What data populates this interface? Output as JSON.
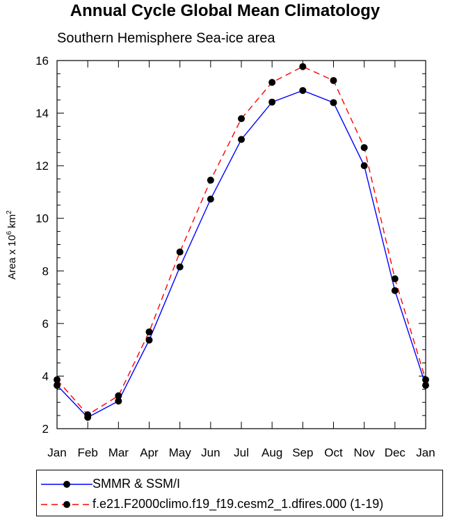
{
  "title": "Annual Cycle Global Mean Climatology",
  "subtitle": "Southern Hemisphere Sea-ice area",
  "chart_data": {
    "type": "line",
    "title": "Annual Cycle Global Mean Climatology",
    "subtitle": "Southern Hemisphere Sea-ice area",
    "ylabel_text": "Area x 10",
    "ylabel_sup": "6",
    "ylabel_unit": " km",
    "ylabel_unit_sup": "2",
    "categories": [
      "Jan",
      "Feb",
      "Mar",
      "Apr",
      "May",
      "Jun",
      "Jul",
      "Aug",
      "Sep",
      "Oct",
      "Nov",
      "Dec",
      "Jan"
    ],
    "ylim": [
      2,
      16
    ],
    "yticks": [
      2,
      4,
      6,
      8,
      10,
      12,
      14,
      16
    ],
    "grid": false,
    "legend_placement": "bottom",
    "series": [
      {
        "name": "SMMR & SSM/I",
        "color": "#0000ff",
        "dashed": false,
        "values": [
          3.65,
          2.43,
          3.05,
          5.37,
          8.15,
          10.73,
          13.0,
          14.42,
          14.86,
          14.4,
          12.0,
          7.25,
          3.65
        ]
      },
      {
        "name": "f.e21.F2000climo.f19_f19.cesm2_1.dfires.000 (1-19)",
        "color": "#ff0000",
        "dashed": true,
        "values": [
          3.86,
          2.53,
          3.25,
          5.68,
          8.72,
          11.45,
          13.79,
          15.17,
          15.77,
          15.24,
          12.69,
          7.7,
          3.86
        ]
      }
    ]
  }
}
